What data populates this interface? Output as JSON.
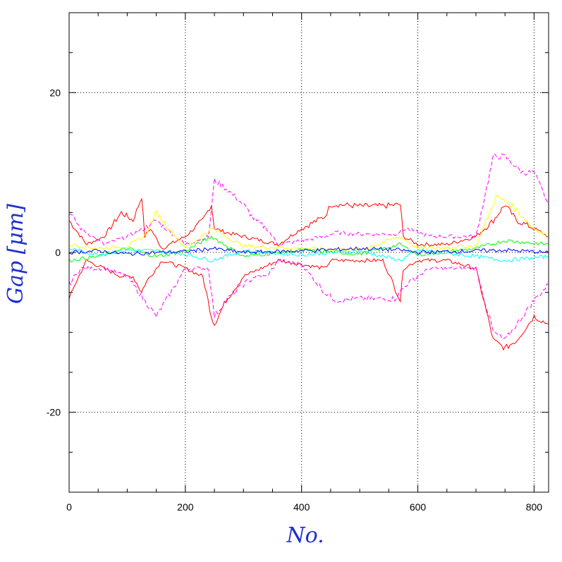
{
  "chart_data": {
    "type": "line",
    "title": "",
    "xlabel": "No.",
    "ylabel": "Gap [μm]",
    "xlim": [
      0,
      825
    ],
    "ylim": [
      -30,
      30
    ],
    "xticks": [
      0,
      200,
      400,
      600,
      800
    ],
    "yticks": [
      -20,
      0,
      20
    ],
    "x_minor_step": 50,
    "y_minor_step": 5,
    "grid": "dotted-major",
    "legend": "none",
    "bands_note": "many overlapping traces; values approximate envelopes read from gridlines",
    "series": [
      {
        "color": "#ff0000",
        "dash": "solid",
        "x": [
          0,
          10,
          30,
          60,
          90,
          110,
          125,
          130,
          140,
          160,
          200,
          230,
          245,
          250,
          270,
          300,
          330,
          360,
          400,
          440,
          450,
          460,
          500,
          540,
          570,
          575,
          600,
          650,
          700,
          730,
          750,
          770,
          800,
          825
        ],
        "y": [
          4,
          3,
          1,
          2,
          5,
          4,
          7,
          2,
          3,
          0.5,
          2,
          4,
          6,
          3,
          2.5,
          2,
          1.5,
          1,
          3,
          4.5,
          6,
          6,
          5.8,
          5.8,
          6,
          2,
          1,
          1,
          2,
          4,
          6,
          4,
          3,
          2
        ]
      },
      {
        "color": "#ff0000",
        "dash": "solid",
        "x": [
          0,
          10,
          30,
          60,
          90,
          110,
          125,
          130,
          140,
          160,
          200,
          230,
          245,
          250,
          270,
          300,
          330,
          360,
          400,
          440,
          450,
          460,
          500,
          540,
          570,
          575,
          600,
          650,
          700,
          730,
          750,
          770,
          800,
          825
        ],
        "y": [
          -6,
          -4,
          -1,
          -2,
          -3,
          -3,
          -5,
          -4,
          -3,
          -1,
          -2,
          -3,
          -8,
          -9,
          -6,
          -3,
          -2,
          -1,
          -1.5,
          -2,
          -1,
          -1,
          -1,
          -1,
          -6,
          -2,
          -1,
          -1,
          -2,
          -11,
          -12,
          -11,
          -8,
          -9
        ]
      },
      {
        "color": "#ff00ff",
        "dash": "dashed",
        "x": [
          0,
          20,
          60,
          100,
          130,
          150,
          200,
          240,
          250,
          270,
          300,
          320,
          340,
          360,
          400,
          440,
          460,
          500,
          560,
          580,
          620,
          700,
          730,
          750,
          780,
          800,
          825
        ],
        "y": [
          5,
          3,
          1,
          2,
          3,
          4,
          1,
          2,
          9,
          8,
          6,
          4,
          3,
          1,
          1.5,
          2,
          2.5,
          2.3,
          2.3,
          3,
          2,
          2,
          12,
          12,
          10,
          10,
          6
        ]
      },
      {
        "color": "#ff00ff",
        "dash": "dashed",
        "x": [
          0,
          20,
          60,
          100,
          130,
          150,
          200,
          240,
          250,
          270,
          300,
          320,
          340,
          360,
          400,
          440,
          460,
          500,
          560,
          580,
          620,
          700,
          730,
          750,
          780,
          800,
          825
        ],
        "y": [
          -4,
          -2,
          -2,
          -3,
          -6,
          -8,
          -2,
          -2,
          -8,
          -6,
          -4,
          -3,
          -3,
          -1,
          -1.5,
          -5,
          -6,
          -5.8,
          -5.8,
          -4,
          -2,
          -2,
          -10,
          -11,
          -8,
          -6,
          -4
        ]
      },
      {
        "color": "#ffff00",
        "dash": "solid",
        "x": [
          0,
          50,
          100,
          130,
          150,
          200,
          245,
          300,
          400,
          500,
          570,
          600,
          700,
          735,
          760,
          800,
          825
        ],
        "y": [
          1,
          0.5,
          0.8,
          2,
          5,
          0.5,
          3,
          0.8,
          0.5,
          0.3,
          2,
          0.5,
          0.8,
          7,
          6,
          3,
          2
        ]
      },
      {
        "color": "#00ff00",
        "dash": "solid",
        "x": [
          0,
          50,
          100,
          150,
          200,
          245,
          300,
          400,
          500,
          570,
          600,
          700,
          750,
          825
        ],
        "y": [
          -1,
          -0.5,
          0.5,
          -0.5,
          0.2,
          2,
          -0.5,
          0.3,
          -0.2,
          1,
          -0.3,
          0.5,
          1.5,
          1
        ]
      },
      {
        "color": "#00ffff",
        "dash": "solid",
        "x": [
          0,
          50,
          100,
          150,
          200,
          245,
          300,
          400,
          500,
          570,
          600,
          700,
          750,
          825
        ],
        "y": [
          0.5,
          -0.3,
          0.3,
          0.2,
          -0.2,
          -1,
          0.2,
          -0.3,
          0.2,
          -1,
          0.3,
          -0.5,
          -1,
          -0.5
        ]
      },
      {
        "color": "#0000ff",
        "dash": "solid",
        "x": [
          0,
          50,
          100,
          150,
          200,
          245,
          300,
          400,
          500,
          570,
          600,
          700,
          750,
          825
        ],
        "y": [
          0,
          0.2,
          -0.2,
          0,
          0.1,
          0.5,
          0,
          0.2,
          0.5,
          0.3,
          0,
          0.2,
          0.3,
          0
        ]
      }
    ]
  }
}
